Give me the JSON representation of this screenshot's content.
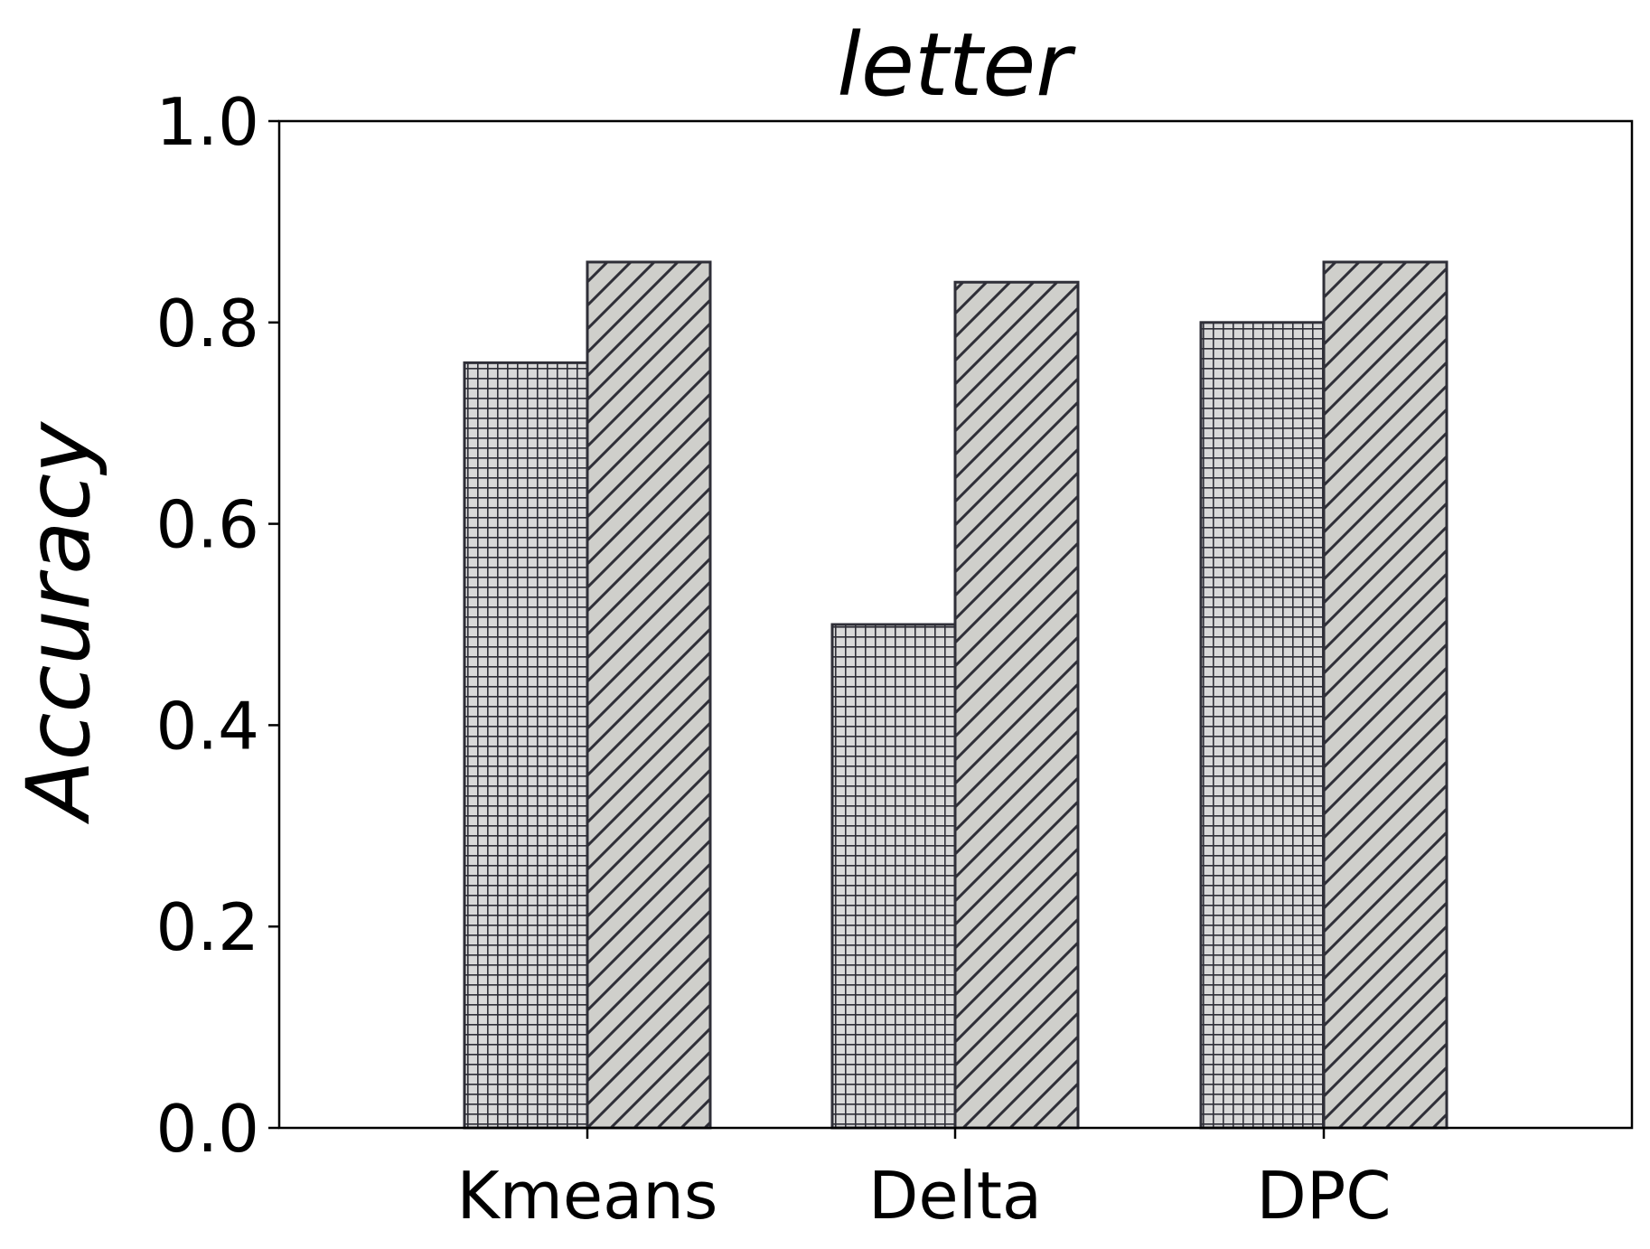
{
  "chart_data": {
    "type": "bar",
    "title": "letter",
    "xlabel": "",
    "ylabel": "Accuracy",
    "categories": [
      "Kmeans",
      "Delta",
      "DPC"
    ],
    "ylim": [
      0,
      1.0
    ],
    "yticks": [
      "0.0",
      "0.2",
      "0.4",
      "0.6",
      "0.8",
      "1.0"
    ],
    "grid": false,
    "legend": "none",
    "series": [
      {
        "pattern": "grid",
        "fill": "#d9d9d9",
        "values": [
          0.76,
          0.5,
          0.8
        ]
      },
      {
        "pattern": "diagonal",
        "fill": "#cfcfcb",
        "values": [
          0.86,
          0.84,
          0.86
        ]
      }
    ],
    "edge_color": "#2f2f38"
  }
}
